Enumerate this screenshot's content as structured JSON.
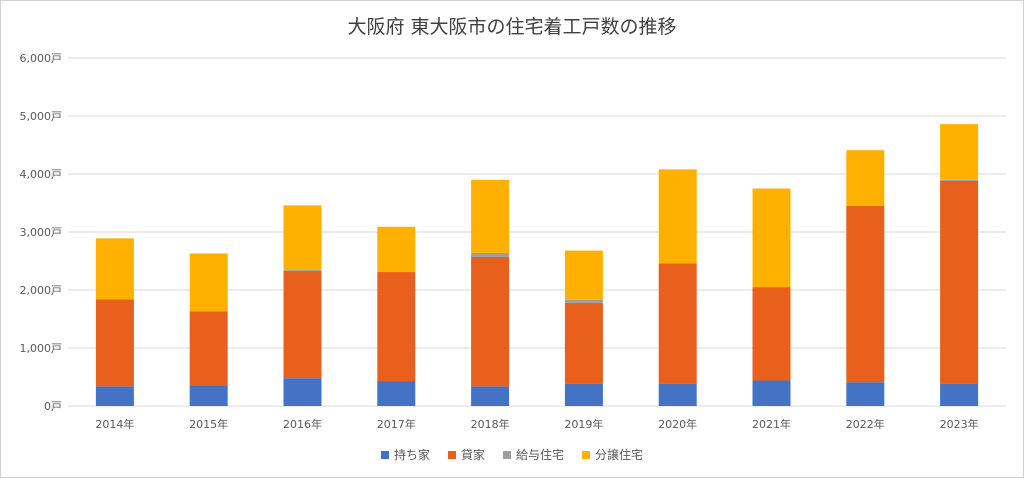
{
  "chart_data": {
    "type": "bar",
    "stacked": true,
    "title": "大阪府 東大阪市の住宅着工戸数の推移",
    "categories": [
      "2014年",
      "2015年",
      "2016年",
      "2017年",
      "2018年",
      "2019年",
      "2020年",
      "2021年",
      "2022年",
      "2023年"
    ],
    "series": [
      {
        "name": "持ち家",
        "color": "#4472C4",
        "values": [
          340,
          360,
          480,
          430,
          340,
          380,
          380,
          440,
          410,
          380
        ]
      },
      {
        "name": "貸家",
        "color": "#E8601C",
        "values": [
          1500,
          1270,
          1850,
          1880,
          2230,
          1400,
          2080,
          1610,
          3040,
          3500
        ]
      },
      {
        "name": "給与住宅",
        "color": "#9E9E9E",
        "values": [
          0,
          0,
          20,
          0,
          70,
          50,
          0,
          0,
          0,
          20
        ]
      },
      {
        "name": "分譲住宅",
        "color": "#FFB000",
        "values": [
          1050,
          1000,
          1110,
          780,
          1260,
          850,
          1620,
          1700,
          960,
          960
        ]
      }
    ],
    "yticks": [
      "0戸",
      "1,000戸",
      "2,000戸",
      "3,000戸",
      "4,000戸",
      "5,000戸",
      "6,000戸"
    ],
    "ylim": [
      0,
      6000
    ],
    "grid": true,
    "legend": "bottom"
  }
}
